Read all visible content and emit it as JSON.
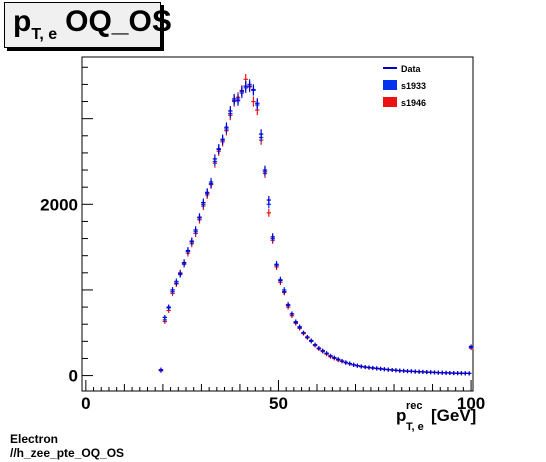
{
  "title": {
    "main": "p",
    "sub": "T, e",
    "suffix": "OQ_OS"
  },
  "footer": {
    "line1": "Electron",
    "line2": "//h_zee_pte_OQ_OS"
  },
  "chart_data": {
    "type": "scatter",
    "title": "p T, e OQ_OS",
    "xlabel": {
      "main": "p",
      "sup": "rec",
      "sub": "T, e",
      "unit": "[GeV]"
    },
    "ylabel": "",
    "xlim": [
      -1,
      100.5
    ],
    "ylim": [
      -180,
      3720
    ],
    "xticks": [
      0,
      50,
      100
    ],
    "yticks": [
      0,
      2000
    ],
    "grid": false,
    "legend": {
      "position": "top-right",
      "entries": [
        {
          "label": "Data",
          "style": "line",
          "color": "#0000cc"
        },
        {
          "label": "s1933",
          "style": "box",
          "color": "#0033ee"
        },
        {
          "label": "s1946",
          "style": "box",
          "color": "#ee1111"
        }
      ]
    },
    "x": [
      19.5,
      20.5,
      21.5,
      22.5,
      23.5,
      24.5,
      25.5,
      26.5,
      27.5,
      28.5,
      29.5,
      30.5,
      31.5,
      32.5,
      33.5,
      34.5,
      35.5,
      36.5,
      37.5,
      38.5,
      39.5,
      40.5,
      41.5,
      42.5,
      43.5,
      44.5,
      45.5,
      46.5,
      47.5,
      48.5,
      49.5,
      50.5,
      51.5,
      52.5,
      53.5,
      54.5,
      55.5,
      56.5,
      57.5,
      58.5,
      59.5,
      60.5,
      61.5,
      62.5,
      63.5,
      64.5,
      65.5,
      66.5,
      67.5,
      68.5,
      69.5,
      70.5,
      71.5,
      72.5,
      73.5,
      74.5,
      75.5,
      76.5,
      77.5,
      78.5,
      79.5,
      80.5,
      81.5,
      82.5,
      83.5,
      84.5,
      85.5,
      86.5,
      87.5,
      88.5,
      89.5,
      90.5,
      91.5,
      92.5,
      93.5,
      94.5,
      95.5,
      96.5,
      97.5,
      98.5,
      99.5,
      100.0
    ],
    "series": [
      {
        "name": "Data",
        "color": "#0000cc",
        "values": [
          70,
          680,
          800,
          1000,
          1080,
          1190,
          1320,
          1460,
          1570,
          1700,
          1850,
          2020,
          2130,
          2240,
          2530,
          2640,
          2750,
          2900,
          3090,
          3230,
          3210,
          3320,
          3380,
          3380,
          3340,
          3180,
          2820,
          2400,
          2050,
          1620,
          1290,
          1110,
          980,
          820,
          720,
          620,
          570,
          500,
          450,
          410,
          360,
          320,
          290,
          260,
          230,
          210,
          190,
          170,
          150,
          140,
          125,
          115,
          105,
          100,
          95,
          90,
          85,
          80,
          75,
          70,
          65,
          62,
          58,
          55,
          52,
          50,
          48,
          45,
          43,
          41,
          39,
          37,
          35,
          33,
          32,
          30,
          29,
          28,
          27,
          26,
          25,
          340
        ]
      },
      {
        "name": "s1933",
        "color": "#0033ee",
        "values": [
          60,
          650,
          790,
          980,
          1100,
          1180,
          1300,
          1450,
          1560,
          1680,
          1840,
          2000,
          2140,
          2260,
          2500,
          2650,
          2760,
          2880,
          3060,
          3210,
          3230,
          3300,
          3360,
          3400,
          3330,
          3160,
          2780,
          2380,
          2000,
          1600,
          1300,
          1120,
          1000,
          830,
          720,
          630,
          560,
          500,
          450,
          400,
          360,
          320,
          290,
          260,
          230,
          210,
          190,
          170,
          155,
          140,
          128,
          117,
          108,
          100,
          94,
          88,
          83,
          79,
          74,
          70,
          66,
          62,
          58,
          55,
          52,
          50,
          47,
          45,
          43,
          41,
          39,
          37,
          35,
          34,
          32,
          31,
          30,
          29,
          28,
          27,
          26,
          330
        ]
      },
      {
        "name": "s1946",
        "color": "#ee1111",
        "values": [
          55,
          630,
          760,
          960,
          1070,
          1200,
          1310,
          1430,
          1540,
          1660,
          1820,
          1980,
          2110,
          2230,
          2480,
          2620,
          2730,
          2860,
          3040,
          3200,
          3250,
          3330,
          3460,
          3370,
          3200,
          3100,
          2750,
          2360,
          1900,
          1580,
          1270,
          1090,
          970,
          800,
          700,
          610,
          550,
          490,
          440,
          400,
          350,
          310,
          280,
          250,
          220,
          200,
          180,
          165,
          150,
          138,
          125,
          115,
          106,
          98,
          92,
          87,
          82,
          77,
          73,
          69,
          65,
          61,
          57,
          54,
          51,
          49,
          46,
          44,
          42,
          40,
          38,
          36,
          34,
          33,
          31,
          30,
          29,
          28,
          27,
          26,
          25,
          320
        ]
      }
    ]
  }
}
